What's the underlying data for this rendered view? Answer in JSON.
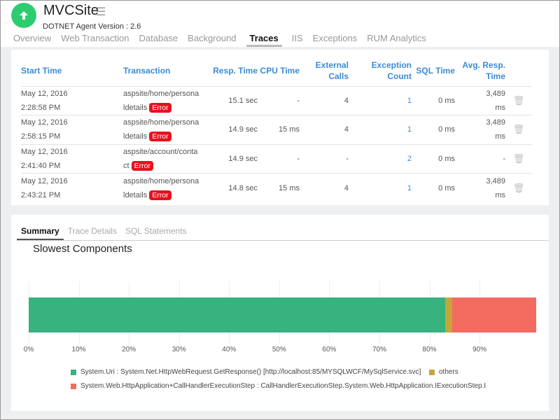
{
  "header": {
    "title": "MVCSite",
    "agent_version": "DOTNET Agent Version : 2.6",
    "status_icon": "arrow-up-icon"
  },
  "tabs": [
    "Overview",
    "Web Transaction",
    "Database",
    "Background",
    "Traces",
    "IIS",
    "Exceptions",
    "RUM Analytics"
  ],
  "active_tab": "Traces",
  "table": {
    "headers": [
      "Start Time",
      "Transaction",
      "Resp. Time",
      "CPU Time",
      "External Calls",
      "Exception Count",
      "SQL Time",
      "Avg. Resp. Time"
    ],
    "rows": [
      {
        "date": "May 12, 2016",
        "time": "2:28:58 PM",
        "tx1": "aspsite/home/persona",
        "tx2": "ldetails",
        "badge": "Error",
        "resp": "15.1 sec",
        "cpu": "-",
        "ext": "4",
        "exc": "1",
        "sql": "0 ms",
        "avg1": "3,489",
        "avg2": "ms"
      },
      {
        "date": "May 12, 2016",
        "time": "2:58:15 PM",
        "tx1": "aspsite/home/persona",
        "tx2": "ldetails",
        "badge": "Error",
        "resp": "14.9 sec",
        "cpu": "15 ms",
        "ext": "4",
        "exc": "1",
        "sql": "0 ms",
        "avg1": "3,489",
        "avg2": "ms"
      },
      {
        "date": "May 12, 2016",
        "time": "2:41:40 PM",
        "tx1": "aspsite/account/conta",
        "tx2": "ct",
        "badge": "Error",
        "resp": "14.9 sec",
        "cpu": "-",
        "ext": "-",
        "exc": "2",
        "sql": "0 ms",
        "avg1": "-",
        "avg2": ""
      },
      {
        "date": "May 12, 2016",
        "time": "2:43:21 PM",
        "tx1": "aspsite/home/persona",
        "tx2": "ldetails",
        "badge": "Error",
        "resp": "14.8 sec",
        "cpu": "15 ms",
        "ext": "4",
        "exc": "1",
        "sql": "0 ms",
        "avg1": "3,489",
        "avg2": "ms"
      }
    ]
  },
  "subtabs": [
    "Summary",
    "Trace Details",
    "SQL Statements"
  ],
  "chart_data": {
    "type": "bar",
    "orientation": "horizontal-stacked",
    "title": "Slowest Components",
    "ticks": [
      "0%",
      "10%",
      "20%",
      "30%",
      "40%",
      "50%",
      "60%",
      "70%",
      "80%",
      "90%"
    ],
    "xlim": [
      0,
      101.3
    ],
    "series": [
      {
        "name": "System.Uri : System.Net.HttpWebRequest.GetResponse() [http://localhost:85/MYSQLWCF/MySqlService.svc]",
        "value": 83.2,
        "color": "#36b37e"
      },
      {
        "name": "others",
        "value": 1.4,
        "color": "#c4a73b"
      },
      {
        "name": "System.Web.HttpApplication+CallHandlerExecutionStep : CallHandlerExecutionStep.System.Web.HttpApplication.IExecutionStep.I",
        "value": 16.7,
        "color": "#f46b5f"
      }
    ]
  }
}
